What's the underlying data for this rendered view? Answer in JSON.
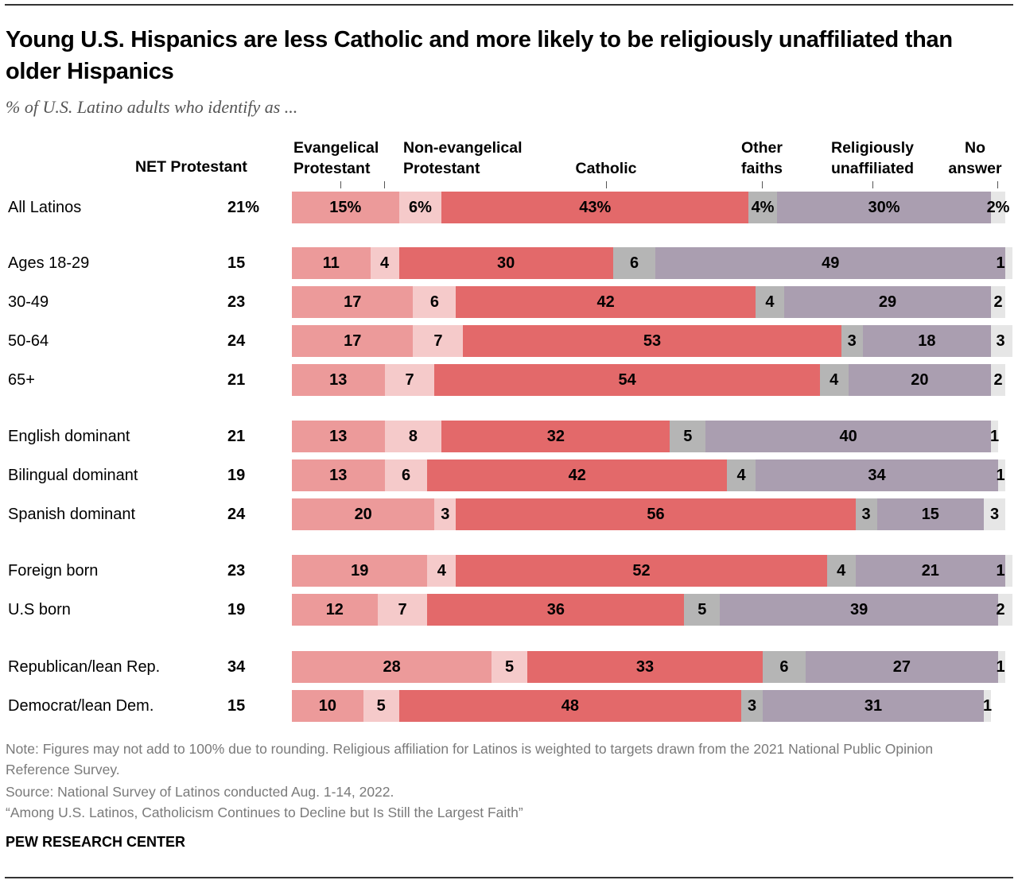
{
  "title": "Young U.S. Hispanics are less Catholic and more likely to be religiously unaffiliated than older Hispanics",
  "subtitle": "% of U.S. Latino adults who identify as ...",
  "net_header": "NET Protestant",
  "notes": {
    "note": "Note: Figures may not add to 100% due to rounding. Religious affiliation for Latinos is weighted to targets drawn from the 2021 National Public Opinion Reference Survey.",
    "source": "Source: National Survey of Latinos conducted Aug. 1-14, 2022.",
    "report": "“Among U.S. Latinos, Catholicism Continues to Decline but Is Still the Largest Faith”",
    "logo": "PEW RESEARCH CENTER"
  },
  "chart_data": {
    "type": "stacked-bar",
    "title": "Young U.S. Hispanics are less Catholic and more likely to be religiously unaffiliated than older Hispanics",
    "xlim": [
      0,
      100
    ],
    "series": [
      {
        "name": "Evangelical Protestant",
        "color": "#EC9A9A"
      },
      {
        "name": "Non-evangelical Protestant",
        "color": "#F5CACA"
      },
      {
        "name": "Catholic",
        "color": "#E3696A"
      },
      {
        "name": "Other faiths",
        "color": "#B5B5B5"
      },
      {
        "name": "Religiously unaffiliated",
        "color": "#AA9EB0"
      },
      {
        "name": "No answer",
        "color": "#E6E6E6"
      }
    ],
    "rows": [
      {
        "label": "All Latinos",
        "net": "21%",
        "values": [
          15,
          6,
          43,
          4,
          30,
          2
        ],
        "percent": true
      },
      {
        "label": "Ages 18-29",
        "net": "15",
        "values": [
          11,
          4,
          30,
          6,
          49,
          1
        ]
      },
      {
        "label": "30-49",
        "net": "23",
        "values": [
          17,
          6,
          42,
          4,
          29,
          2
        ]
      },
      {
        "label": "50-64",
        "net": "24",
        "values": [
          17,
          7,
          53,
          3,
          18,
          3
        ]
      },
      {
        "label": "65+",
        "net": "21",
        "values": [
          13,
          7,
          54,
          4,
          20,
          2
        ]
      },
      {
        "label": "English dominant",
        "net": "21",
        "values": [
          13,
          8,
          32,
          5,
          40,
          1
        ]
      },
      {
        "label": "Bilingual dominant",
        "net": "19",
        "values": [
          13,
          6,
          42,
          4,
          34,
          1
        ]
      },
      {
        "label": "Spanish dominant",
        "net": "24",
        "values": [
          20,
          3,
          56,
          3,
          15,
          3
        ]
      },
      {
        "label": "Foreign born",
        "net": "23",
        "values": [
          19,
          4,
          52,
          4,
          21,
          1
        ]
      },
      {
        "label": "U.S born",
        "net": "19",
        "values": [
          12,
          7,
          36,
          5,
          39,
          2
        ]
      },
      {
        "label": "Republican/lean Rep.",
        "net": "34",
        "values": [
          28,
          5,
          33,
          6,
          27,
          1
        ]
      },
      {
        "label": "Democrat/lean Dem.",
        "net": "15",
        "values": [
          10,
          5,
          48,
          3,
          31,
          1
        ]
      }
    ]
  }
}
